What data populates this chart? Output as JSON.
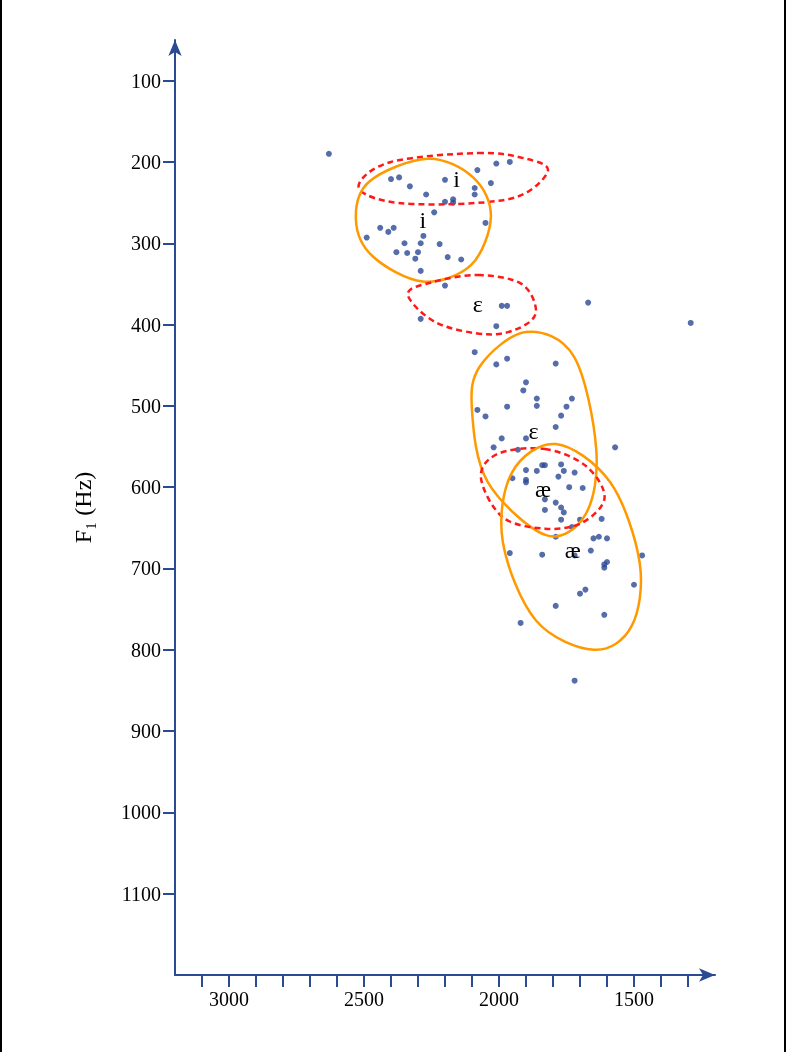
{
  "chart_data": {
    "type": "scatter",
    "ylabel": "F₁ (Hz)",
    "xlim": [
      3200,
      1200
    ],
    "ylim": [
      1200,
      50
    ],
    "xticks": [
      {
        "value": 3100,
        "label": null
      },
      3000,
      {
        "value": 2900,
        "label": null
      },
      {
        "value": 2800,
        "label": null
      },
      {
        "value": 2700,
        "label": null
      },
      {
        "value": 2600,
        "label": null
      },
      2500,
      {
        "value": 2400,
        "label": null
      },
      {
        "value": 2300,
        "label": null
      },
      {
        "value": 2200,
        "label": null
      },
      {
        "value": 2100,
        "label": null
      },
      2000,
      {
        "value": 1900,
        "label": null
      },
      {
        "value": 1800,
        "label": null
      },
      {
        "value": 1700,
        "label": null
      },
      {
        "value": 1600,
        "label": null
      },
      1500,
      {
        "value": 1400,
        "label": null
      },
      {
        "value": 1300,
        "label": null
      }
    ],
    "yticks": [
      100,
      200,
      300,
      400,
      500,
      600,
      700,
      800,
      900,
      1000,
      1100
    ],
    "grid": false,
    "series": [
      {
        "marker": "circle",
        "color": "#2b4a94",
        "x": [
          2630,
          2010,
          1960,
          2080,
          2400,
          2370,
          2200,
          2030,
          2330,
          2090,
          2270,
          2090,
          2170,
          2170,
          2200,
          2240,
          2050,
          2440,
          2390,
          2410,
          2490,
          2280,
          2350,
          2290,
          2220,
          2380,
          2340,
          2300,
          2310,
          2190,
          2140,
          2290,
          2200,
          1990,
          1970,
          2290,
          2010,
          1670,
          1290,
          2090,
          2010,
          1970,
          1790,
          1900,
          1910,
          1860,
          1860,
          1730,
          1750,
          2080,
          2050,
          1970,
          1770,
          1790,
          1990,
          1900,
          2020,
          1930,
          1570,
          1840,
          1830,
          1900,
          1860,
          1770,
          1760,
          1720,
          1950,
          1900,
          1900,
          1780,
          1740,
          1690,
          1830,
          1790,
          1830,
          1770,
          1760,
          1770,
          1700,
          1620,
          1730,
          1790,
          1650,
          1630,
          1600,
          1960,
          1840,
          1720,
          1660,
          1470,
          1610,
          1600,
          1610,
          1500,
          1700,
          1680,
          1790,
          1610,
          1920,
          1720
        ],
        "values": [
          190,
          202,
          200,
          210,
          221,
          219,
          222,
          226,
          230,
          232,
          240,
          240,
          246,
          250,
          249,
          262,
          275,
          281,
          281,
          286,
          293,
          291,
          300,
          300,
          301,
          311,
          312,
          311,
          319,
          317,
          320,
          334,
          352,
          377,
          377,
          393,
          402,
          373,
          398,
          434,
          449,
          442,
          448,
          471,
          481,
          491,
          500,
          491,
          501,
          505,
          513,
          501,
          512,
          526,
          540,
          540,
          551,
          554,
          551,
          573,
          573,
          579,
          580,
          572,
          580,
          582,
          589,
          591,
          594,
          587,
          600,
          601,
          615,
          619,
          628,
          625,
          631,
          640,
          640,
          639,
          649,
          661,
          663,
          661,
          663,
          681,
          683,
          684,
          678,
          684,
          695,
          692,
          699,
          720,
          731,
          726,
          746,
          757,
          767,
          838
        ]
      }
    ],
    "annotations": [
      "i",
      "i",
      "ε",
      "ε",
      "æ",
      "æ"
    ]
  }
}
